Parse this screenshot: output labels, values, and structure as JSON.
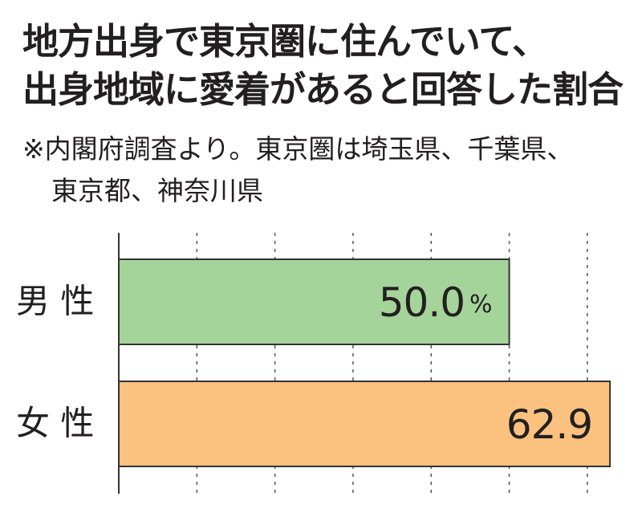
{
  "chart_data": {
    "type": "hbar",
    "title": "地方出身で東京圏に住んでいて、\n出身地域に愛着があると回答した割合",
    "note": "※内閣府調査より。東京圏は埼玉県、千葉県、\n東京都、神奈川県",
    "categories": [
      "男 性",
      "女 性"
    ],
    "values": [
      50.0,
      62.9
    ],
    "value_labels": [
      "50.0%",
      "62.9"
    ],
    "colors": [
      "#a5d49a",
      "#fbc17f"
    ],
    "xlim": [
      0,
      67
    ],
    "xticks": [
      10,
      20,
      30,
      40,
      50,
      60
    ],
    "grid": true
  }
}
